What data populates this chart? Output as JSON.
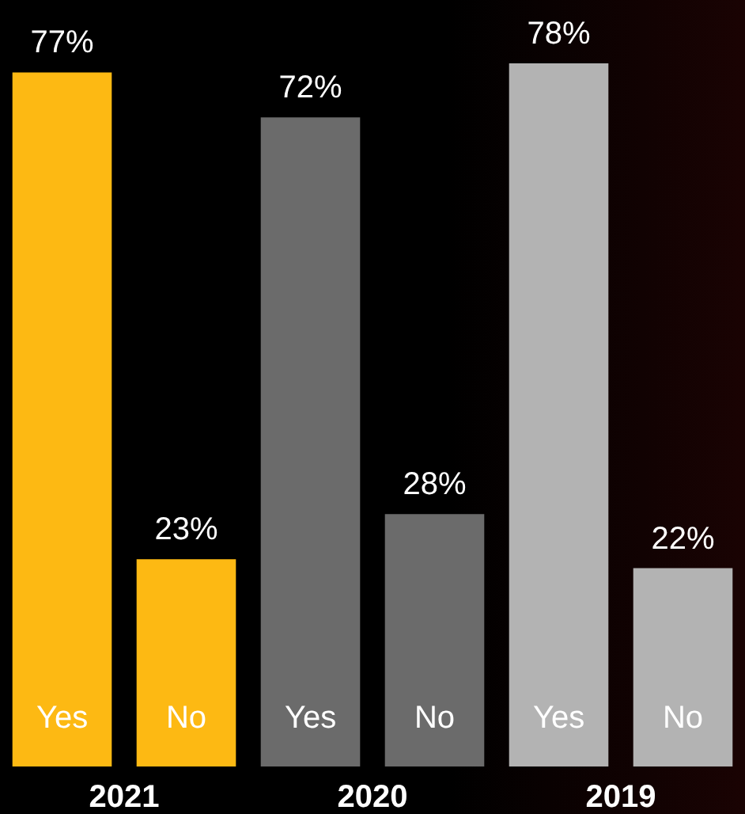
{
  "chart_data": {
    "type": "bar",
    "categories": [
      "Yes",
      "No",
      "Yes",
      "No",
      "Yes",
      "No"
    ],
    "values": [
      77,
      23,
      72,
      28,
      78,
      22
    ],
    "colors": [
      "#fdb913",
      "#fdb913",
      "#6b6b6b",
      "#6b6b6b",
      "#b3b3b3",
      "#b3b3b3"
    ],
    "value_labels": [
      "77%",
      "23%",
      "72%",
      "28%",
      "78%",
      "22%"
    ],
    "annotations": [
      "2021",
      "2020",
      "2019"
    ]
  }
}
